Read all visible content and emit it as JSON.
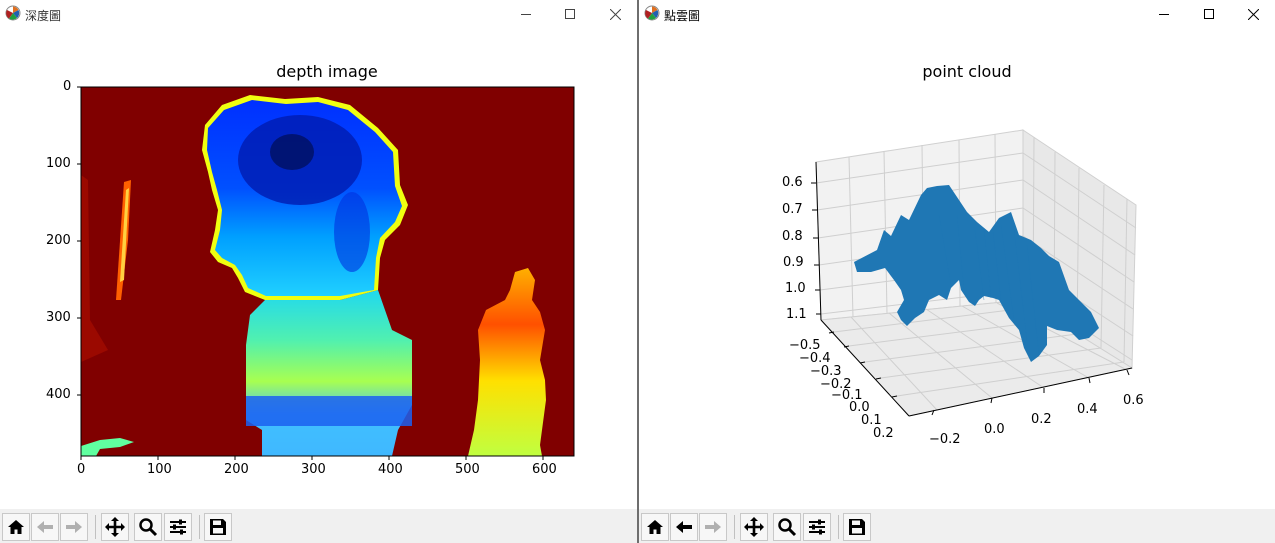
{
  "windows": [
    {
      "id": "left",
      "title": "深度圖",
      "plot": {
        "title": "depth image",
        "x_ticks": [
          "0",
          "100",
          "200",
          "300",
          "400",
          "500",
          "600"
        ],
        "y_ticks": [
          "0",
          "100",
          "200",
          "300",
          "400"
        ]
      }
    },
    {
      "id": "right",
      "title": "點雲圖",
      "plot": {
        "title": "point cloud",
        "z_ticks": [
          "0.6",
          "0.7",
          "0.8",
          "0.9",
          "1.0",
          "1.1"
        ],
        "y_ticks": [
          "−0.5",
          "−0.4",
          "−0.3",
          "−0.2",
          "−0.1",
          "0.0",
          "0.1",
          "0.2"
        ],
        "x_ticks": [
          "−0.2",
          "0.0",
          "0.2",
          "0.4",
          "0.6"
        ]
      }
    }
  ],
  "window_controls": {
    "minimize": "—",
    "maximize": "☐",
    "close": "✕"
  },
  "toolbar_icons": [
    "home-icon",
    "back-icon",
    "forward-icon",
    "pan-icon",
    "zoom-icon",
    "configure-subplots-icon",
    "save-icon"
  ],
  "colors": {
    "depth_background": "#800000",
    "point_cloud": "#1f77b4",
    "toolbar": "#f0f0f0"
  }
}
